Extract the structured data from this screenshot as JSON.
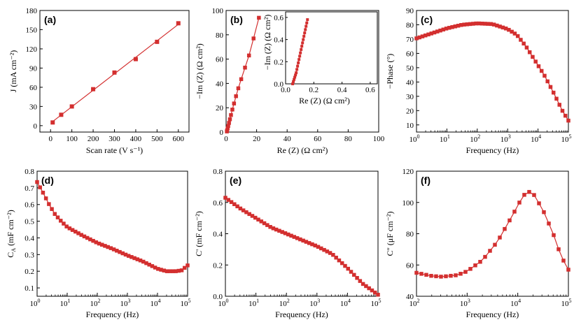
{
  "colors": {
    "series": "#d32f2f",
    "axis": "#000000"
  },
  "chart_data": [
    {
      "id": "a",
      "type": "scatter",
      "panel_label": "(a)",
      "fit_line": true,
      "xlabel": "Scan rate (V s⁻¹)",
      "ylabel": "J (mA cm⁻²)",
      "xlim": [
        -50,
        650
      ],
      "ylim": [
        -10,
        180
      ],
      "xticks": [
        0,
        100,
        200,
        300,
        400,
        500,
        600
      ],
      "yticks": [
        0,
        30,
        60,
        90,
        120,
        150,
        180
      ],
      "x": [
        10,
        50,
        100,
        200,
        300,
        400,
        500,
        600
      ],
      "y": [
        5,
        17,
        30,
        57,
        83,
        104,
        131,
        160
      ]
    },
    {
      "id": "b",
      "type": "scatter",
      "panel_label": "(b)",
      "xlabel": "Re (Z) (Ω cm²)",
      "ylabel": "−Im (Z) (Ω cm²)",
      "xlim": [
        0,
        100
      ],
      "ylim": [
        0,
        100
      ],
      "xticks": [
        0,
        20,
        40,
        60,
        80,
        100
      ],
      "yticks": [
        0,
        20,
        40,
        60,
        80,
        100
      ],
      "x": [
        0.5,
        0.7,
        1,
        1.4,
        1.9,
        2.5,
        3.2,
        4.1,
        5.2,
        6.5,
        8.0,
        9.9,
        12.4,
        15.0,
        18.0,
        21.5
      ],
      "y": [
        0.5,
        1.5,
        3,
        5,
        7.5,
        10.5,
        14,
        18.5,
        23.5,
        29.5,
        36,
        43.5,
        53,
        63,
        77,
        94
      ],
      "inset": {
        "xlabel": "Re (Z) (Ω cm²)",
        "ylabel": "−Im (Z) (Ω cm²)",
        "xlim": [
          0,
          0.65
        ],
        "ylim": [
          0,
          0.65
        ],
        "xticks": [
          0.0,
          0.2,
          0.4,
          0.6
        ],
        "yticks": [
          0.0,
          0.2,
          0.4,
          0.6
        ],
        "x": [
          0.05,
          0.055,
          0.06,
          0.065,
          0.07,
          0.075,
          0.08,
          0.085,
          0.09,
          0.095,
          0.1,
          0.105,
          0.11,
          0.115,
          0.12,
          0.125,
          0.13,
          0.135,
          0.14,
          0.145,
          0.15,
          0.155
        ],
        "y": [
          0.0,
          0.02,
          0.04,
          0.06,
          0.08,
          0.1,
          0.13,
          0.16,
          0.19,
          0.22,
          0.25,
          0.28,
          0.31,
          0.34,
          0.37,
          0.4,
          0.43,
          0.46,
          0.49,
          0.52,
          0.55,
          0.58
        ]
      }
    },
    {
      "id": "c",
      "type": "line",
      "panel_label": "(c)",
      "xscale": "log",
      "xlabel": "Frequency (Hz)",
      "ylabel": "−Phase (°)",
      "xlim_exp": [
        0,
        5
      ],
      "ylim": [
        5,
        90
      ],
      "yticks": [
        10,
        20,
        30,
        40,
        50,
        60,
        70,
        80,
        90
      ],
      "xtick_labels": [
        "10",
        "10",
        "10",
        "10",
        "10",
        "10"
      ],
      "xtick_exponents": [
        "0",
        "1",
        "2",
        "3",
        "4",
        "5"
      ],
      "curve": [
        [
          0,
          70.5
        ],
        [
          0.5,
          74
        ],
        [
          1,
          77.5
        ],
        [
          1.5,
          80
        ],
        [
          2,
          81
        ],
        [
          2.5,
          80.5
        ],
        [
          3,
          77
        ],
        [
          3.3,
          73
        ],
        [
          3.6,
          65
        ],
        [
          3.9,
          55
        ],
        [
          4.2,
          45
        ],
        [
          4.5,
          33
        ],
        [
          4.8,
          20
        ],
        [
          5,
          13
        ]
      ]
    },
    {
      "id": "d",
      "type": "line",
      "panel_label": "(d)",
      "xscale": "log",
      "xlabel": "Frequency (Hz)",
      "ylabel": "C",
      "ylabel_sub": "A",
      "ylabel_rest": " (mF cm⁻²)",
      "xlim_exp": [
        0,
        5
      ],
      "ylim": [
        0.05,
        0.8
      ],
      "yticks": [
        0.1,
        0.2,
        0.3,
        0.4,
        0.5,
        0.6,
        0.7,
        0.8
      ],
      "ytick_labels": [
        "0.1",
        "0.2",
        "0.3",
        "0.4",
        "0.5",
        "0.6",
        "0.7",
        "0.8"
      ],
      "xtick_labels": [
        "10",
        "10",
        "10",
        "10",
        "10",
        "10"
      ],
      "xtick_exponents": [
        "0",
        "1",
        "2",
        "3",
        "4",
        "5"
      ],
      "curve": [
        [
          0,
          0.735
        ],
        [
          0.2,
          0.67
        ],
        [
          0.4,
          0.6
        ],
        [
          0.6,
          0.54
        ],
        [
          0.8,
          0.5
        ],
        [
          1,
          0.465
        ],
        [
          1.5,
          0.415
        ],
        [
          2,
          0.37
        ],
        [
          2.5,
          0.335
        ],
        [
          3,
          0.295
        ],
        [
          3.5,
          0.26
        ],
        [
          4,
          0.215
        ],
        [
          4.3,
          0.2
        ],
        [
          4.6,
          0.2
        ],
        [
          4.8,
          0.205
        ],
        [
          5,
          0.235
        ]
      ]
    },
    {
      "id": "e",
      "type": "line",
      "panel_label": "(e)",
      "xscale": "log",
      "xlabel": "Frequency (Hz)",
      "ylabel": "C' (mF cm⁻²)",
      "xlim_exp": [
        0,
        5
      ],
      "ylim": [
        0,
        0.8
      ],
      "yticks": [
        0.0,
        0.2,
        0.4,
        0.6,
        0.8
      ],
      "ytick_labels": [
        "0.0",
        "0.2",
        "0.4",
        "0.6",
        "0.8"
      ],
      "xtick_labels": [
        "10",
        "10",
        "10",
        "10",
        "10",
        "10"
      ],
      "xtick_exponents": [
        "0",
        "1",
        "2",
        "3",
        "4",
        "5"
      ],
      "curve": [
        [
          0,
          0.63
        ],
        [
          0.5,
          0.56
        ],
        [
          1,
          0.5
        ],
        [
          1.5,
          0.44
        ],
        [
          2,
          0.4
        ],
        [
          2.5,
          0.36
        ],
        [
          3,
          0.32
        ],
        [
          3.5,
          0.27
        ],
        [
          4,
          0.18
        ],
        [
          4.5,
          0.08
        ],
        [
          5,
          0.01
        ]
      ]
    },
    {
      "id": "f",
      "type": "line",
      "panel_label": "(f)",
      "xscale": "log",
      "xlabel": "Frequency (Hz)",
      "ylabel": "C'' (μF cm⁻²)",
      "xlim_exp": [
        2,
        5
      ],
      "ylim": [
        40,
        120
      ],
      "yticks": [
        40,
        60,
        80,
        100,
        120
      ],
      "xtick_labels": [
        "10",
        "10",
        "10",
        "10"
      ],
      "xtick_exponents": [
        "2",
        "3",
        "4",
        "5"
      ],
      "curve": [
        [
          2,
          55
        ],
        [
          2.3,
          53
        ],
        [
          2.5,
          52.5
        ],
        [
          2.8,
          53.5
        ],
        [
          3,
          56
        ],
        [
          3.3,
          63
        ],
        [
          3.6,
          75
        ],
        [
          3.9,
          92
        ],
        [
          4.1,
          104
        ],
        [
          4.2,
          107
        ],
        [
          4.3,
          106
        ],
        [
          4.5,
          95
        ],
        [
          4.7,
          80
        ],
        [
          4.85,
          66
        ],
        [
          5,
          57
        ]
      ]
    }
  ]
}
